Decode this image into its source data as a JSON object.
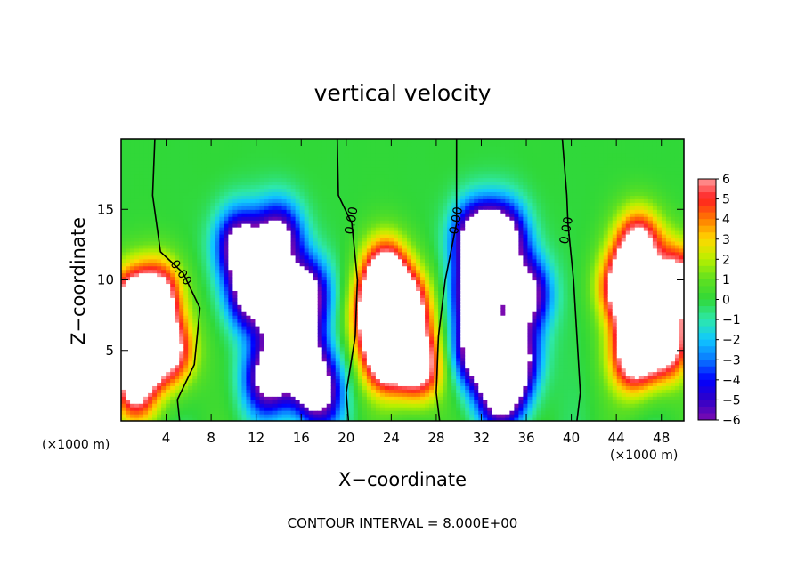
{
  "chart_data": {
    "type": "heatmap",
    "title": "vertical velocity",
    "xlabel": "X−coordinate",
    "ylabel": "Z−coordinate",
    "x_unit_left": "(×1000 m)",
    "x_unit_right": "(×1000 m)",
    "footnote": "CONTOUR INTERVAL = 8.000E+00",
    "xlim": [
      0,
      50
    ],
    "ylim": [
      0,
      20
    ],
    "x_ticks": [
      4,
      8,
      12,
      16,
      20,
      24,
      28,
      32,
      36,
      40,
      44,
      48
    ],
    "y_ticks": [
      5,
      10,
      15
    ],
    "colorbar": {
      "min": -6,
      "max": 6,
      "ticks": [
        "6",
        "5",
        "4",
        "3",
        "2",
        "1",
        "0",
        "−1",
        "−2",
        "−3",
        "−4",
        "−5",
        "−6"
      ],
      "clip_color": "#ffffff"
    },
    "contour_labels": [
      {
        "text": "0.00",
        "x": 5.3,
        "z": 10.5,
        "angle": 55
      },
      {
        "text": "0.00",
        "x": 20.5,
        "z": 14.2,
        "angle": -80
      },
      {
        "text": "0.00",
        "x": 29.8,
        "z": 14.2,
        "angle": -80
      },
      {
        "text": "0.00",
        "x": 39.6,
        "z": 13.5,
        "angle": -80
      }
    ],
    "zero_contours": [
      [
        [
          3.0,
          20
        ],
        [
          2.8,
          16
        ],
        [
          3.5,
          12
        ],
        [
          5.5,
          10.5
        ],
        [
          7.0,
          8
        ],
        [
          6.5,
          4
        ],
        [
          5.0,
          1.5
        ],
        [
          5.2,
          0
        ]
      ],
      [
        [
          19.2,
          20
        ],
        [
          19.3,
          16
        ],
        [
          20.5,
          14
        ],
        [
          21.0,
          10
        ],
        [
          20.8,
          6
        ],
        [
          20.0,
          2
        ],
        [
          20.2,
          0
        ]
      ],
      [
        [
          29.8,
          20
        ],
        [
          29.8,
          16
        ],
        [
          29.8,
          14
        ],
        [
          28.8,
          10
        ],
        [
          28.2,
          6
        ],
        [
          28.0,
          2
        ],
        [
          28.3,
          0
        ]
      ],
      [
        [
          39.2,
          20
        ],
        [
          39.6,
          16
        ],
        [
          39.7,
          14
        ],
        [
          40.2,
          10
        ],
        [
          40.5,
          6
        ],
        [
          40.8,
          2
        ],
        [
          40.5,
          0
        ]
      ]
    ],
    "series": [
      {
        "sign": "up",
        "amplitude": 6.5,
        "points": [
          [
            0.8,
            8.5
          ],
          [
            1.8,
            5.5
          ],
          [
            1.2,
            2.5
          ],
          [
            3.4,
            9.0
          ],
          [
            4.5,
            5.0
          ]
        ]
      },
      {
        "sign": "down",
        "amplitude": 7.0,
        "points": [
          [
            10.5,
            12.5
          ],
          [
            14.0,
            13.0
          ],
          [
            11.5,
            9.0
          ],
          [
            14.5,
            7.5
          ],
          [
            16.5,
            9.0
          ],
          [
            16.0,
            4.5
          ],
          [
            17.5,
            2.0
          ],
          [
            13.0,
            3.0
          ]
        ]
      },
      {
        "sign": "up",
        "amplitude": 7.5,
        "points": [
          [
            23.5,
            10.5
          ],
          [
            25.5,
            8.0
          ],
          [
            23.5,
            4.5
          ],
          [
            26.5,
            4.0
          ],
          [
            22.5,
            7.5
          ]
        ]
      },
      {
        "sign": "down",
        "amplitude": 7.5,
        "points": [
          [
            34.0,
            13.0
          ],
          [
            31.5,
            9.0
          ],
          [
            36.0,
            9.0
          ],
          [
            31.5,
            5.0
          ],
          [
            35.0,
            4.5
          ],
          [
            33.8,
            2.0
          ],
          [
            31.5,
            13.0
          ]
        ]
      },
      {
        "sign": "up",
        "amplitude": 7.0,
        "points": [
          [
            46.0,
            12.5
          ],
          [
            44.5,
            9.5
          ],
          [
            46.5,
            7.5
          ],
          [
            48.5,
            5.5
          ],
          [
            45.5,
            4.5
          ],
          [
            49.5,
            10.0
          ]
        ]
      }
    ]
  }
}
